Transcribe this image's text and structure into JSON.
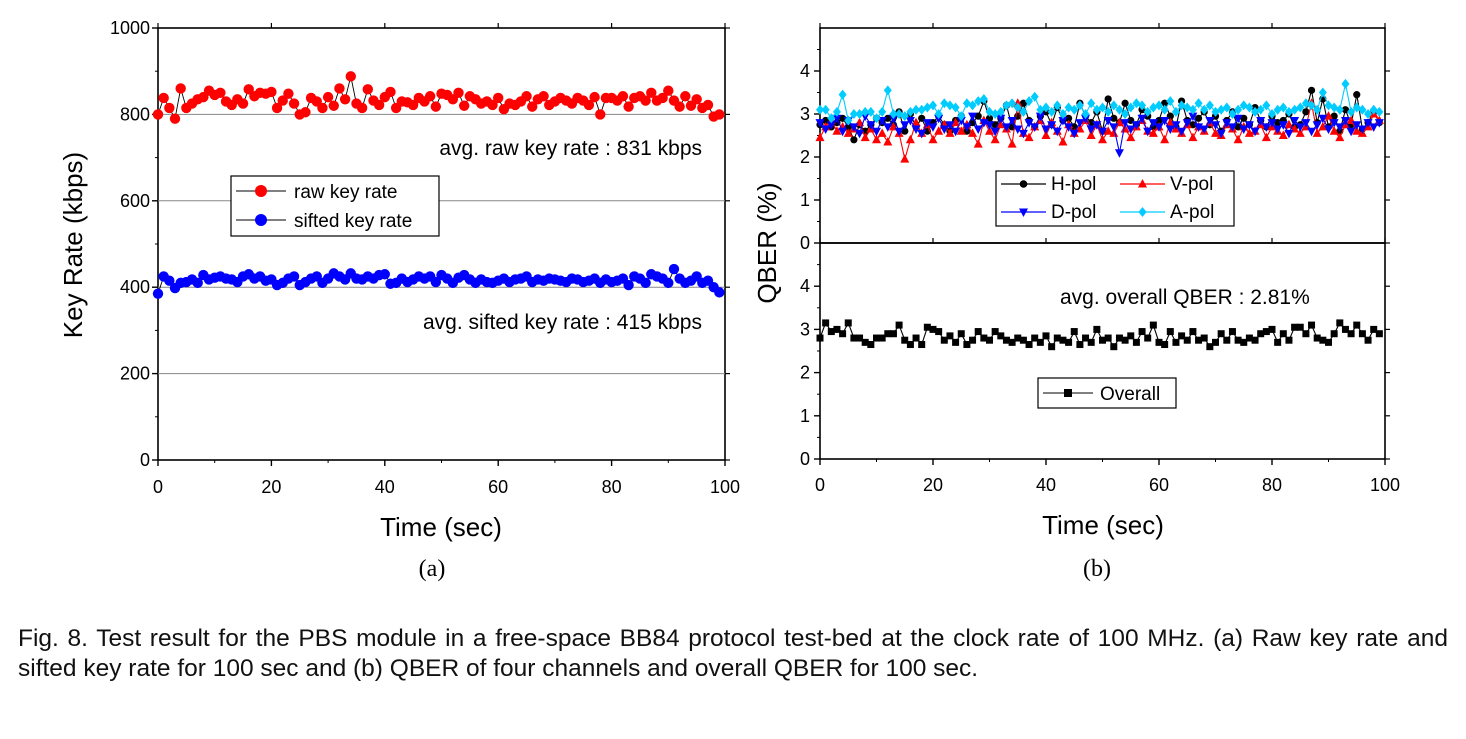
{
  "chart_data": [
    {
      "type": "scatter",
      "panel_label": "(a)",
      "xlabel": "Time (sec)",
      "ylabel": "Key Rate (kbps)",
      "xlim": [
        0,
        100
      ],
      "ylim": [
        0,
        1000
      ],
      "xticks": [
        0,
        20,
        40,
        60,
        80,
        100
      ],
      "yticks": [
        0,
        200,
        400,
        600,
        800,
        1000
      ],
      "grid": "horizontal",
      "legend_position": "middle-left",
      "annotations": [
        "avg. raw key rate : 831 kbps",
        "avg. sifted key rate : 415 kbps"
      ],
      "x": [
        0,
        1,
        2,
        3,
        4,
        5,
        6,
        7,
        8,
        9,
        10,
        11,
        12,
        13,
        14,
        15,
        16,
        17,
        18,
        19,
        20,
        21,
        22,
        23,
        24,
        25,
        26,
        27,
        28,
        29,
        30,
        31,
        32,
        33,
        34,
        35,
        36,
        37,
        38,
        39,
        40,
        41,
        42,
        43,
        44,
        45,
        46,
        47,
        48,
        49,
        50,
        51,
        52,
        53,
        54,
        55,
        56,
        57,
        58,
        59,
        60,
        61,
        62,
        63,
        64,
        65,
        66,
        67,
        68,
        69,
        70,
        71,
        72,
        73,
        74,
        75,
        76,
        77,
        78,
        79,
        80,
        81,
        82,
        83,
        84,
        85,
        86,
        87,
        88,
        89,
        90,
        91,
        92,
        93,
        94,
        95,
        96,
        97,
        98,
        99
      ],
      "series": [
        {
          "name": "raw key rate",
          "color": "#ff0000",
          "marker": "circle",
          "values": [
            800,
            838,
            815,
            790,
            860,
            815,
            825,
            835,
            840,
            855,
            845,
            850,
            830,
            822,
            835,
            825,
            858,
            842,
            850,
            848,
            852,
            815,
            832,
            848,
            825,
            800,
            805,
            838,
            830,
            815,
            840,
            820,
            860,
            835,
            888,
            825,
            815,
            858,
            832,
            822,
            840,
            852,
            815,
            830,
            828,
            822,
            838,
            830,
            842,
            818,
            848,
            845,
            835,
            850,
            820,
            842,
            835,
            825,
            830,
            822,
            838,
            812,
            825,
            822,
            830,
            842,
            818,
            835,
            842,
            822,
            830,
            838,
            832,
            825,
            838,
            832,
            822,
            840,
            800,
            838,
            838,
            832,
            842,
            818,
            838,
            842,
            832,
            850,
            832,
            838,
            855,
            832,
            818,
            842,
            820,
            835,
            815,
            822,
            795,
            800
          ]
        },
        {
          "name": "sifted key rate",
          "color": "#0000ff",
          "marker": "circle",
          "values": [
            385,
            425,
            415,
            398,
            410,
            412,
            418,
            410,
            428,
            418,
            422,
            425,
            420,
            418,
            412,
            425,
            430,
            420,
            425,
            415,
            418,
            405,
            410,
            420,
            425,
            405,
            412,
            420,
            425,
            410,
            420,
            432,
            425,
            418,
            432,
            420,
            418,
            425,
            420,
            428,
            430,
            408,
            410,
            420,
            412,
            418,
            425,
            420,
            425,
            412,
            428,
            420,
            410,
            422,
            428,
            418,
            410,
            418,
            412,
            410,
            415,
            420,
            412,
            418,
            420,
            425,
            412,
            418,
            415,
            420,
            418,
            415,
            412,
            420,
            418,
            412,
            415,
            420,
            410,
            418,
            412,
            415,
            420,
            405,
            425,
            420,
            410,
            430,
            425,
            420,
            410,
            442,
            420,
            410,
            415,
            425,
            410,
            415,
            400,
            388
          ]
        }
      ]
    },
    {
      "type": "line",
      "panel_label": "(b)",
      "subplot": "upper",
      "xlabel": "Time (sec)",
      "ylabel": "QBER (%)",
      "xlim": [
        0,
        100
      ],
      "ylim": [
        0,
        5
      ],
      "yticks": [
        0,
        1,
        2,
        3,
        4
      ],
      "legend_position": "bottom-right",
      "x": [
        0,
        1,
        2,
        3,
        4,
        5,
        6,
        7,
        8,
        9,
        10,
        11,
        12,
        13,
        14,
        15,
        16,
        17,
        18,
        19,
        20,
        21,
        22,
        23,
        24,
        25,
        26,
        27,
        28,
        29,
        30,
        31,
        32,
        33,
        34,
        35,
        36,
        37,
        38,
        39,
        40,
        41,
        42,
        43,
        44,
        45,
        46,
        47,
        48,
        49,
        50,
        51,
        52,
        53,
        54,
        55,
        56,
        57,
        58,
        59,
        60,
        61,
        62,
        63,
        64,
        65,
        66,
        67,
        68,
        69,
        70,
        71,
        72,
        73,
        74,
        75,
        76,
        77,
        78,
        79,
        80,
        81,
        82,
        83,
        84,
        85,
        86,
        87,
        88,
        89,
        90,
        91,
        92,
        93,
        94,
        95,
        96,
        97,
        98,
        99
      ],
      "series": [
        {
          "name": "H-pol",
          "color": "#000000",
          "marker": "circle",
          "values": [
            2.75,
            2.85,
            2.7,
            2.8,
            2.9,
            2.7,
            2.4,
            2.75,
            2.6,
            2.75,
            2.9,
            2.8,
            2.9,
            2.75,
            3.05,
            2.6,
            3.0,
            2.7,
            2.9,
            2.6,
            2.8,
            2.95,
            2.75,
            2.6,
            2.85,
            2.95,
            2.6,
            2.8,
            2.95,
            3.3,
            2.9,
            2.75,
            2.9,
            3.2,
            2.7,
            2.95,
            3.25,
            2.85,
            2.7,
            2.95,
            3.05,
            2.75,
            3.15,
            2.85,
            2.9,
            2.7,
            3.25,
            2.95,
            2.8,
            3.05,
            2.6,
            3.35,
            2.9,
            2.8,
            3.25,
            2.85,
            2.75,
            3.1,
            2.95,
            2.7,
            2.85,
            3.25,
            2.95,
            2.7,
            3.3,
            2.85,
            2.75,
            2.9,
            3.05,
            2.75,
            2.95,
            2.6,
            2.85,
            3.05,
            2.7,
            2.9,
            2.75,
            3.15,
            2.85,
            2.7,
            2.95,
            2.8,
            2.85,
            3.0,
            2.7,
            2.75,
            3.05,
            3.55,
            2.8,
            3.35,
            2.7,
            2.95,
            2.6,
            3.1,
            2.75,
            3.45,
            2.65,
            2.8,
            3.05,
            2.8
          ]
        },
        {
          "name": "V-pol",
          "color": "#ff0000",
          "marker": "triangle-up",
          "values": [
            2.45,
            2.7,
            2.85,
            2.6,
            2.7,
            2.55,
            2.65,
            2.8,
            2.45,
            2.65,
            2.4,
            2.55,
            2.35,
            2.7,
            2.55,
            1.95,
            2.4,
            2.8,
            2.55,
            2.75,
            2.4,
            2.6,
            2.75,
            2.55,
            2.8,
            2.6,
            2.75,
            2.55,
            2.3,
            2.85,
            2.6,
            2.4,
            2.75,
            2.65,
            2.3,
            3.25,
            2.55,
            2.45,
            2.7,
            2.85,
            2.5,
            2.8,
            2.6,
            2.35,
            2.75,
            2.55,
            2.65,
            2.85,
            2.5,
            2.75,
            2.4,
            2.6,
            2.55,
            2.8,
            2.65,
            2.45,
            2.7,
            2.85,
            2.6,
            2.55,
            2.7,
            2.4,
            2.8,
            2.65,
            2.55,
            2.75,
            2.45,
            2.7,
            2.6,
            2.8,
            2.55,
            2.5,
            2.75,
            2.65,
            2.4,
            2.7,
            2.55,
            2.6,
            2.75,
            2.45,
            2.7,
            2.6,
            2.5,
            2.75,
            2.65,
            2.55,
            2.7,
            3.25,
            2.55,
            2.7,
            2.95,
            2.6,
            2.45,
            2.75,
            2.85,
            2.6,
            2.55,
            2.7,
            3.0,
            2.85
          ]
        },
        {
          "name": "D-pol",
          "color": "#0000ff",
          "marker": "triangle-down",
          "values": [
            2.8,
            2.65,
            2.75,
            2.9,
            2.6,
            2.85,
            2.7,
            2.55,
            2.95,
            2.75,
            2.6,
            2.85,
            2.7,
            2.9,
            2.6,
            2.75,
            2.85,
            2.65,
            2.55,
            2.8,
            2.7,
            2.9,
            2.65,
            2.75,
            2.6,
            2.85,
            2.7,
            2.95,
            2.65,
            2.8,
            2.75,
            2.6,
            2.9,
            2.7,
            2.85,
            2.65,
            2.55,
            2.8,
            2.7,
            2.95,
            2.65,
            2.75,
            2.6,
            2.85,
            2.7,
            2.55,
            2.8,
            2.9,
            2.65,
            2.75,
            2.6,
            2.85,
            2.7,
            2.1,
            2.8,
            2.65,
            2.75,
            2.9,
            2.6,
            2.8,
            2.7,
            2.85,
            2.65,
            2.75,
            2.6,
            2.8,
            2.95,
            2.7,
            2.65,
            2.85,
            2.75,
            2.55,
            2.8,
            2.7,
            2.9,
            2.65,
            2.75,
            2.6,
            2.85,
            2.7,
            2.8,
            2.65,
            2.75,
            2.55,
            2.85,
            2.7,
            2.8,
            2.6,
            2.75,
            2.9,
            2.65,
            2.8,
            2.7,
            2.85,
            2.6,
            2.75,
            2.65,
            2.8,
            2.7,
            2.8
          ]
        },
        {
          "name": "A-pol",
          "color": "#00ccff",
          "marker": "diamond",
          "values": [
            3.1,
            3.1,
            2.9,
            3.05,
            3.45,
            2.85,
            3.0,
            3.0,
            3.05,
            3.05,
            2.9,
            3.05,
            3.55,
            3.0,
            3.0,
            2.95,
            3.05,
            3.1,
            3.1,
            3.15,
            3.2,
            3.0,
            3.25,
            3.2,
            3.15,
            2.95,
            3.25,
            3.2,
            3.3,
            3.35,
            3.05,
            3.0,
            3.05,
            3.2,
            3.25,
            3.15,
            3.05,
            3.3,
            3.4,
            3.1,
            3.15,
            3.05,
            3.2,
            3.0,
            3.15,
            3.1,
            3.2,
            3.0,
            3.25,
            3.1,
            3.15,
            3.05,
            3.2,
            3.1,
            3.0,
            3.15,
            3.25,
            3.2,
            3.05,
            3.15,
            3.2,
            3.1,
            3.3,
            3.05,
            3.2,
            3.15,
            3.1,
            3.25,
            3.1,
            3.2,
            3.05,
            3.1,
            3.15,
            3.0,
            3.1,
            3.2,
            3.15,
            3.05,
            3.1,
            3.2,
            3.0,
            3.1,
            3.15,
            3.05,
            3.1,
            3.15,
            3.25,
            3.2,
            3.1,
            3.5,
            3.2,
            3.15,
            3.1,
            3.7,
            3.05,
            3.15,
            3.1,
            3.0,
            3.1,
            3.05
          ]
        }
      ]
    },
    {
      "type": "line",
      "panel_label": "(b)",
      "subplot": "lower",
      "xlabel": "Time (sec)",
      "ylabel": "QBER (%)",
      "xlim": [
        0,
        100
      ],
      "ylim": [
        0,
        5
      ],
      "xticks": [
        0,
        20,
        40,
        60,
        80,
        100
      ],
      "yticks": [
        0,
        1,
        2,
        3,
        4
      ],
      "legend_position": "center-right",
      "annotations": [
        "avg. overall QBER : 2.81%"
      ],
      "x": [
        0,
        1,
        2,
        3,
        4,
        5,
        6,
        7,
        8,
        9,
        10,
        11,
        12,
        13,
        14,
        15,
        16,
        17,
        18,
        19,
        20,
        21,
        22,
        23,
        24,
        25,
        26,
        27,
        28,
        29,
        30,
        31,
        32,
        33,
        34,
        35,
        36,
        37,
        38,
        39,
        40,
        41,
        42,
        43,
        44,
        45,
        46,
        47,
        48,
        49,
        50,
        51,
        52,
        53,
        54,
        55,
        56,
        57,
        58,
        59,
        60,
        61,
        62,
        63,
        64,
        65,
        66,
        67,
        68,
        69,
        70,
        71,
        72,
        73,
        74,
        75,
        76,
        77,
        78,
        79,
        80,
        81,
        82,
        83,
        84,
        85,
        86,
        87,
        88,
        89,
        90,
        91,
        92,
        93,
        94,
        95,
        96,
        97,
        98,
        99
      ],
      "series": [
        {
          "name": "Overall",
          "color": "#000000",
          "marker": "square",
          "values": [
            2.8,
            3.15,
            2.95,
            3.0,
            2.9,
            3.15,
            2.8,
            2.8,
            2.7,
            2.65,
            2.8,
            2.8,
            2.9,
            2.9,
            3.1,
            2.75,
            2.65,
            2.8,
            2.65,
            3.05,
            3.0,
            2.95,
            2.75,
            2.85,
            2.7,
            2.9,
            2.65,
            2.75,
            2.95,
            2.8,
            2.75,
            2.95,
            2.85,
            2.75,
            2.7,
            2.8,
            2.75,
            2.65,
            2.8,
            2.7,
            2.85,
            2.6,
            2.8,
            2.75,
            2.7,
            2.95,
            2.65,
            2.8,
            2.7,
            3.0,
            2.75,
            2.8,
            2.6,
            2.8,
            2.75,
            2.85,
            2.7,
            2.95,
            2.8,
            3.1,
            2.7,
            2.65,
            2.95,
            2.7,
            2.85,
            2.75,
            2.95,
            2.75,
            2.8,
            2.6,
            2.7,
            2.9,
            2.75,
            2.95,
            2.75,
            2.7,
            2.8,
            2.75,
            2.9,
            2.95,
            3.0,
            2.7,
            2.9,
            2.75,
            3.05,
            3.05,
            2.9,
            3.1,
            2.8,
            2.75,
            2.7,
            2.9,
            3.15,
            3.0,
            2.9,
            3.1,
            2.9,
            2.75,
            3.0,
            2.9
          ]
        }
      ]
    }
  ],
  "caption": "Fig. 8. Test result for the PBS module in a free-space BB84 protocol test-bed at the clock rate of 100 MHz. (a) Raw key rate and sifted key rate for 100 sec and (b) QBER of four channels and overall QBER for 100 sec."
}
